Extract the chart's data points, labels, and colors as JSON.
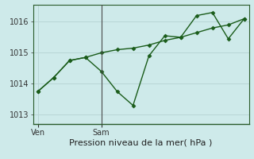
{
  "xlabel": "Pression niveau de la mer( hPa )",
  "background_color": "#ceeaea",
  "grid_color": "#b8d5d5",
  "line_color": "#1a5c1a",
  "vline_color": "#4a4a4a",
  "spine_color": "#2a5a2a",
  "ylim": [
    1012.7,
    1016.55
  ],
  "yticks": [
    1013,
    1014,
    1015,
    1016
  ],
  "xlim": [
    -0.3,
    13.3
  ],
  "line1_x": [
    0,
    1,
    2,
    3,
    4,
    5,
    6,
    7,
    8,
    9,
    10,
    11,
    12,
    13
  ],
  "line1_y": [
    1013.75,
    1014.2,
    1014.75,
    1014.85,
    1014.4,
    1013.75,
    1013.3,
    1014.9,
    1015.55,
    1015.5,
    1016.2,
    1016.3,
    1015.45,
    1016.1
  ],
  "line2_x": [
    0,
    1,
    2,
    3,
    4,
    5,
    6,
    7,
    8,
    9,
    10,
    11,
    12,
    13
  ],
  "line2_y": [
    1013.75,
    1014.2,
    1014.75,
    1014.85,
    1015.0,
    1015.1,
    1015.15,
    1015.25,
    1015.4,
    1015.5,
    1015.65,
    1015.8,
    1015.9,
    1016.1
  ],
  "xtick_positions": [
    0,
    4
  ],
  "xtick_labels": [
    "Ven",
    "Sam"
  ],
  "vline_x": 4,
  "xlabel_fontsize": 8,
  "ytick_fontsize": 7,
  "xtick_fontsize": 7
}
